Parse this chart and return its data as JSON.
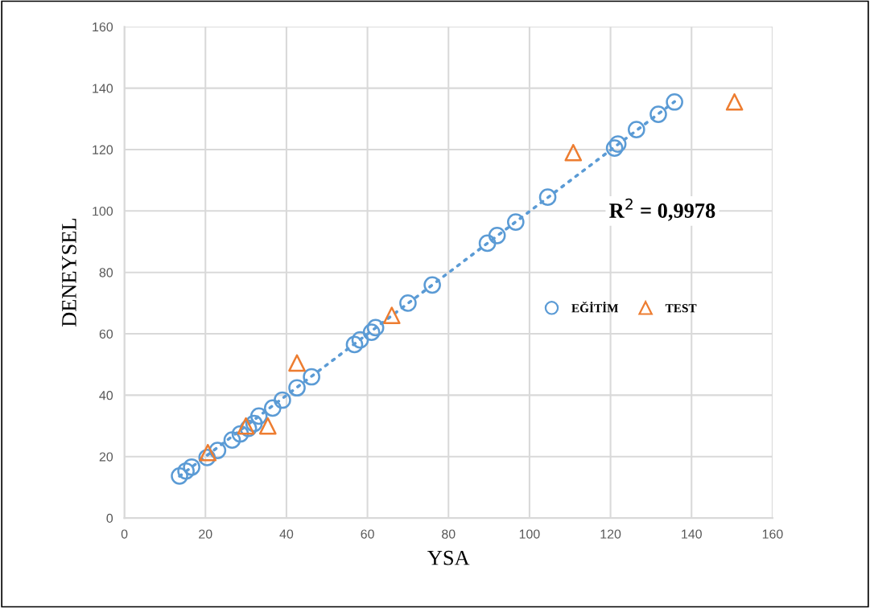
{
  "chart_data": {
    "type": "scatter",
    "xlabel": "YSA",
    "ylabel": "DENEYSEL",
    "xlim": [
      0,
      160
    ],
    "ylim": [
      0,
      160
    ],
    "xticks": [
      0,
      20,
      40,
      60,
      80,
      100,
      120,
      140,
      160
    ],
    "yticks": [
      0,
      20,
      40,
      60,
      80,
      100,
      120,
      140,
      160
    ],
    "grid": true,
    "legend": "right",
    "annotations": [
      "R$^{2}$ = 0,9978"
    ],
    "series": [
      {
        "name": "EĞİTİM",
        "color": "#5b9bd5",
        "marker": "circle",
        "x": [
          13.6,
          15.2,
          16.6,
          20.4,
          23,
          26.6,
          28.6,
          30.6,
          32,
          33.2,
          36.6,
          39,
          42.6,
          46.2,
          56.8,
          58.2,
          61,
          62,
          70,
          76,
          89.6,
          92,
          96.6,
          104.5,
          121,
          121.8,
          126.4,
          131.8,
          135.8
        ],
        "values": [
          13.7,
          15.3,
          16.6,
          19.7,
          22,
          25.4,
          27.4,
          29.2,
          30.8,
          33.2,
          35.8,
          38.4,
          42.4,
          46,
          56.5,
          58,
          60.5,
          62,
          70,
          75.9,
          89.5,
          92,
          96.4,
          104.5,
          120.5,
          121.8,
          126.5,
          131.5,
          135.5
        ]
      },
      {
        "name": "TEST",
        "color": "#ed7d31",
        "marker": "triangle",
        "x": [
          20.6,
          30,
          35.4,
          42.6,
          66,
          110.8,
          150.6
        ],
        "values": [
          21.3,
          30,
          30,
          50.5,
          66,
          119,
          135.5
        ]
      },
      {
        "type": "line",
        "color": "#5b9bd5",
        "line_style": "dotted",
        "marker": "none",
        "x": [
          13.6,
          135.8
        ],
        "values": [
          13.6,
          135.6
        ]
      }
    ]
  }
}
